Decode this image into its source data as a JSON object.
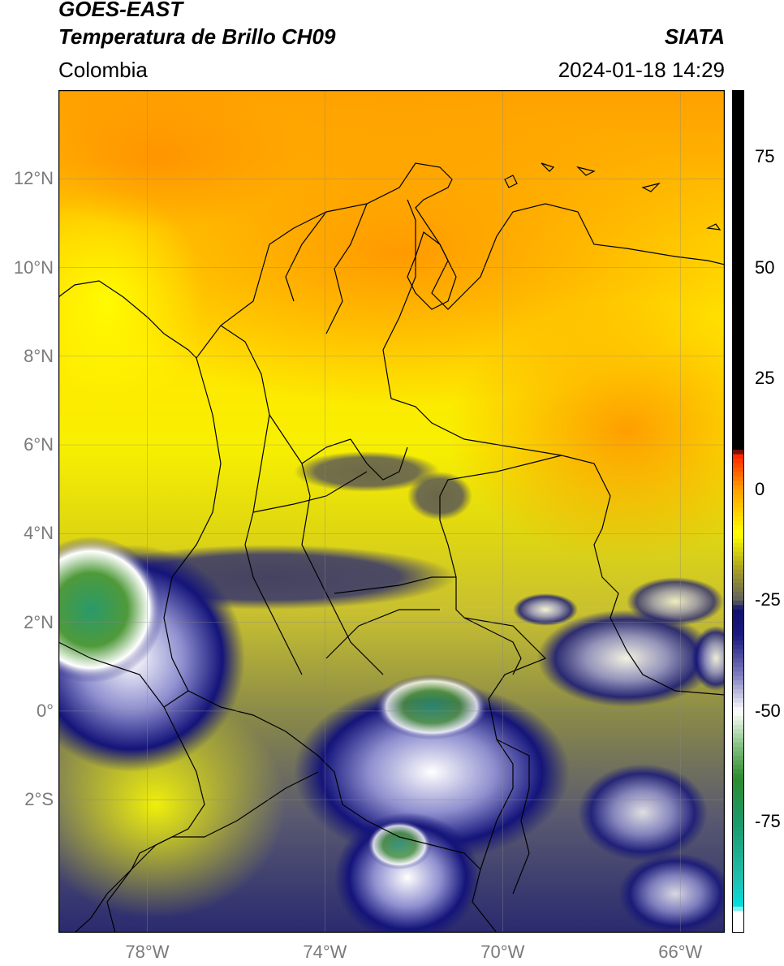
{
  "header": {
    "satellite": "GOES-EAST",
    "product": "Temperatura de Brillo CH09",
    "agency": "SIATA",
    "region": "Colombia",
    "datetime": "2024-01-18 14:29"
  },
  "map": {
    "lon_range": [
      -80,
      -65
    ],
    "lat_range": [
      -5,
      14
    ],
    "lat_ticks": [
      {
        "value": 12,
        "label": "12°N"
      },
      {
        "value": 10,
        "label": "10°N"
      },
      {
        "value": 8,
        "label": "8°N"
      },
      {
        "value": 6,
        "label": "6°N"
      },
      {
        "value": 4,
        "label": "4°N"
      },
      {
        "value": 2,
        "label": "2°N"
      },
      {
        "value": 0,
        "label": "0°"
      },
      {
        "value": -2,
        "label": "2°S"
      }
    ],
    "lon_ticks": [
      {
        "value": -78,
        "label": "78°W"
      },
      {
        "value": -74,
        "label": "74°W"
      },
      {
        "value": -70,
        "label": "70°W"
      },
      {
        "value": -66,
        "label": "66°W"
      }
    ],
    "grid": true
  },
  "colorbar": {
    "range": [
      -100,
      90
    ],
    "ticks": [
      {
        "value": 75,
        "label": "75"
      },
      {
        "value": 50,
        "label": "50"
      },
      {
        "value": 25,
        "label": "25"
      },
      {
        "value": 0,
        "label": "0"
      },
      {
        "value": -25,
        "label": "-25"
      },
      {
        "value": -50,
        "label": "-50"
      },
      {
        "value": -75,
        "label": "-75"
      }
    ],
    "stops": [
      {
        "value": -100,
        "color": "#ffffff"
      },
      {
        "value": -95,
        "color": "#ffffff"
      },
      {
        "value": -94,
        "color": "#00e0e0"
      },
      {
        "value": -88,
        "color": "#20c0b0"
      },
      {
        "value": -75,
        "color": "#1a9a6a"
      },
      {
        "value": -65,
        "color": "#2e8b2e"
      },
      {
        "value": -58,
        "color": "#7fbf7f"
      },
      {
        "value": -50,
        "color": "#ffffff"
      },
      {
        "value": -42,
        "color": "#8080c0"
      },
      {
        "value": -33,
        "color": "#1a1a80"
      },
      {
        "value": -27,
        "color": "#101070"
      },
      {
        "value": -25,
        "color": "#606060"
      },
      {
        "value": -18,
        "color": "#a8a020"
      },
      {
        "value": -10,
        "color": "#ffff00"
      },
      {
        "value": 0,
        "color": "#ffa000"
      },
      {
        "value": 8,
        "color": "#ff2000"
      },
      {
        "value": 9,
        "color": "#000000"
      },
      {
        "value": 90,
        "color": "#000000"
      }
    ]
  }
}
